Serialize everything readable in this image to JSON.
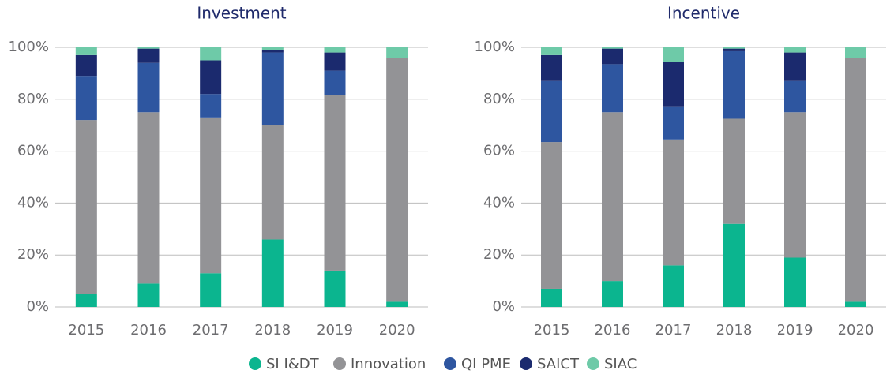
{
  "chart_data": [
    {
      "type": "bar",
      "stacked": true,
      "title": "Investment",
      "categories": [
        "2015",
        "2016",
        "2017",
        "2018",
        "2019",
        "2020"
      ],
      "series": [
        {
          "name": "SI I&DT",
          "color": "#0bb58f",
          "values": [
            5,
            9,
            13,
            26,
            14,
            2
          ]
        },
        {
          "name": "Innovation",
          "color": "#939396",
          "values": [
            67,
            66,
            60,
            44,
            67.5,
            94
          ]
        },
        {
          "name": "QI PME",
          "color": "#2e56a0",
          "values": [
            17,
            19,
            9,
            28,
            9.5,
            0
          ]
        },
        {
          "name": "SAICT",
          "color": "#1b2a6e",
          "values": [
            8,
            5.5,
            13,
            1,
            7,
            0
          ]
        },
        {
          "name": "SIAC",
          "color": "#6ecaa8",
          "values": [
            3,
            0.5,
            5,
            1,
            2,
            4
          ]
        }
      ],
      "ylim": [
        0,
        100
      ],
      "yticks": [
        {
          "value": 0,
          "label": "0%"
        },
        {
          "value": 20,
          "label": "20%"
        },
        {
          "value": 40,
          "label": "40%"
        },
        {
          "value": 60,
          "label": "60%"
        },
        {
          "value": 80,
          "label": "80%"
        },
        {
          "value": 100,
          "label": "100%"
        }
      ],
      "grid": true
    },
    {
      "type": "bar",
      "stacked": true,
      "title": "Incentive",
      "categories": [
        "2015",
        "2016",
        "2017",
        "2018",
        "2019",
        "2020"
      ],
      "series": [
        {
          "name": "SI I&DT",
          "color": "#0bb58f",
          "values": [
            7,
            10,
            16,
            32,
            19,
            2
          ]
        },
        {
          "name": "Innovation",
          "color": "#939396",
          "values": [
            56.5,
            65,
            48.5,
            40.5,
            56,
            94
          ]
        },
        {
          "name": "QI PME",
          "color": "#2e56a0",
          "values": [
            23.5,
            18.5,
            12.8,
            26,
            12,
            0
          ]
        },
        {
          "name": "SAICT",
          "color": "#1b2a6e",
          "values": [
            10,
            6,
            17.2,
            1,
            11,
            0
          ]
        },
        {
          "name": "SIAC",
          "color": "#6ecaa8",
          "values": [
            3,
            0.5,
            5.5,
            0.5,
            2,
            4
          ]
        }
      ],
      "ylim": [
        0,
        100
      ],
      "yticks": [
        {
          "value": 0,
          "label": "0%"
        },
        {
          "value": 20,
          "label": "20%"
        },
        {
          "value": 40,
          "label": "40%"
        },
        {
          "value": 60,
          "label": "60%"
        },
        {
          "value": 80,
          "label": "80%"
        },
        {
          "value": 100,
          "label": "100%"
        }
      ],
      "grid": true
    }
  ]
}
